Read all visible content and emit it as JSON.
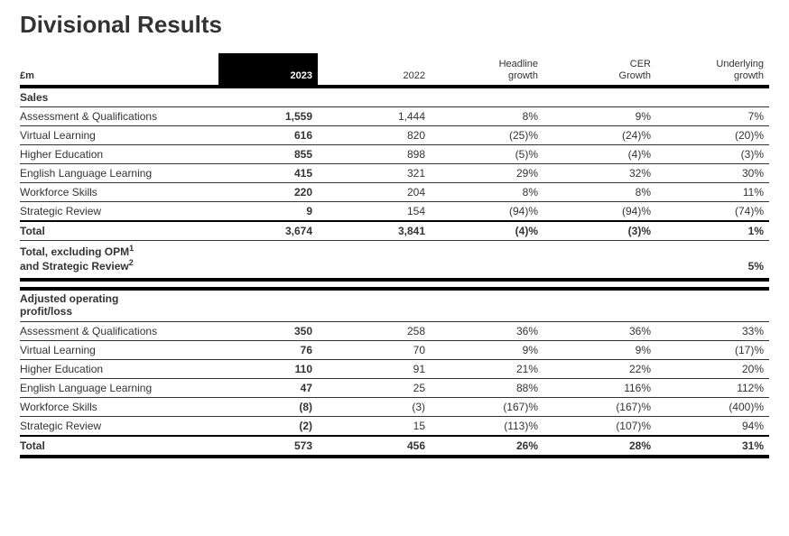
{
  "title": "Divisional Results",
  "unit_note": "£m",
  "columns": {
    "y2023": "2023",
    "y2022": "2022",
    "headline": "Headline growth",
    "cer": "CER Growth",
    "underlying": "Underlying growth"
  },
  "sections": {
    "sales": {
      "heading": "Sales",
      "rows": [
        {
          "label": "Assessment & Qualifications",
          "y2023": "1,559",
          "y2022": "1,444",
          "headline": "8%",
          "cer": "9%",
          "underlying": "7%"
        },
        {
          "label": "Virtual Learning",
          "y2023": "616",
          "y2022": "820",
          "headline": "(25)%",
          "cer": "(24)%",
          "underlying": "(20)%"
        },
        {
          "label": "Higher Education",
          "y2023": "855",
          "y2022": "898",
          "headline": "(5)%",
          "cer": "(4)%",
          "underlying": "(3)%"
        },
        {
          "label": "English Language Learning",
          "y2023": "415",
          "y2022": "321",
          "headline": "29%",
          "cer": "32%",
          "underlying": "30%"
        },
        {
          "label": "Workforce Skills",
          "y2023": "220",
          "y2022": "204",
          "headline": "8%",
          "cer": "8%",
          "underlying": "11%"
        },
        {
          "label": "Strategic Review",
          "y2023": "9",
          "y2022": "154",
          "headline": "(94)%",
          "cer": "(94)%",
          "underlying": "(74)%"
        }
      ],
      "total": {
        "label": "Total",
        "y2023": "3,674",
        "y2022": "3,841",
        "headline": "(4)%",
        "cer": "(3)%",
        "underlying": "1%"
      },
      "footnote": {
        "label_line1": "Total, excluding OPM",
        "sup1": "1",
        "label_line2": "and Strategic Review",
        "sup2": "2",
        "underlying": "5%"
      }
    },
    "aop": {
      "heading_line1": "Adjusted operating",
      "heading_line2": "profit/loss",
      "rows": [
        {
          "label": "Assessment & Qualifications",
          "y2023": "350",
          "y2022": "258",
          "headline": "36%",
          "cer": "36%",
          "underlying": "33%"
        },
        {
          "label": "Virtual Learning",
          "y2023": "76",
          "y2022": "70",
          "headline": "9%",
          "cer": "9%",
          "underlying": "(17)%"
        },
        {
          "label": "Higher Education",
          "y2023": "110",
          "y2022": "91",
          "headline": "21%",
          "cer": "22%",
          "underlying": "20%"
        },
        {
          "label": "English Language Learning",
          "y2023": "47",
          "y2022": "25",
          "headline": "88%",
          "cer": "116%",
          "underlying": "112%"
        },
        {
          "label": "Workforce Skills",
          "y2023": "(8)",
          "y2022": "(3)",
          "headline": "(167)%",
          "cer": "(167)%",
          "underlying": "(400)%"
        },
        {
          "label": "Strategic Review",
          "y2023": "(2)",
          "y2022": "15",
          "headline": "(113)%",
          "cer": "(107)%",
          "underlying": "94%"
        }
      ],
      "total": {
        "label": "Total",
        "y2023": "573",
        "y2022": "456",
        "headline": "26%",
        "cer": "28%",
        "underlying": "31%"
      }
    }
  },
  "styling": {
    "background_color": "#ffffff",
    "text_color": "#333333",
    "highlight_column_bg": "#000000",
    "highlight_column_text": "#ffffff",
    "row_border_color": "#333333",
    "section_border_color": "#000000",
    "title_fontsize": 26,
    "body_fontsize": 12,
    "header_fontsize": 11,
    "font_family": "Arial"
  }
}
